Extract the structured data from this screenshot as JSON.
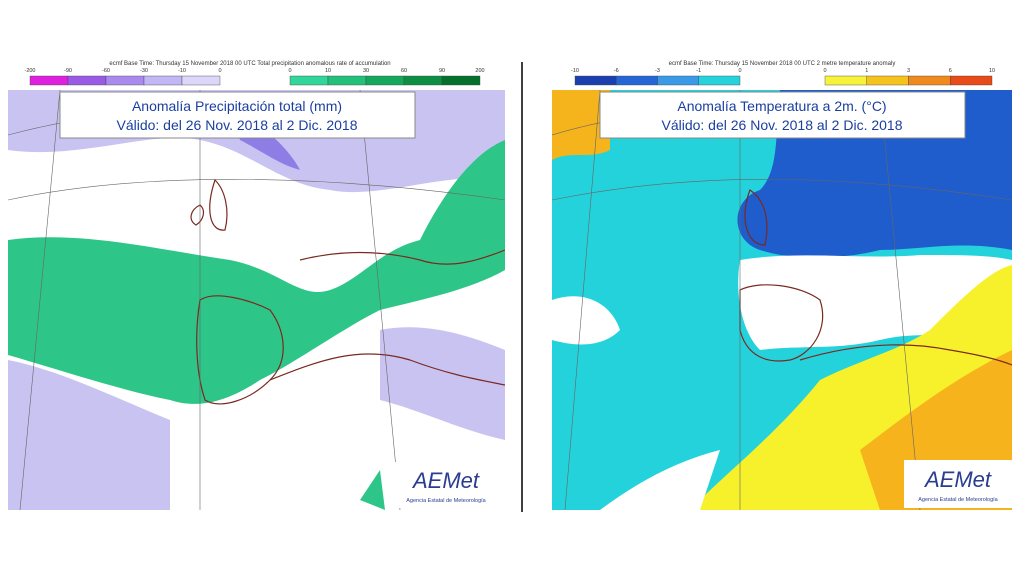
{
  "maps": [
    {
      "header": "ecmf Base Time: Thursday 15 November 2018 00 UTC Total precipitation anomalous rate of accumulation",
      "title": "Anomalía Precipitación total (mm)",
      "subtitle": "Válido: del 26 Nov. 2018 al 2 Dic. 2018",
      "legend_low": {
        "labels": [
          -200,
          -90,
          -60,
          -30,
          -10,
          0
        ],
        "colors": [
          "#e020e0",
          "#9a5ae6",
          "#a98bf0",
          "#c2b6f4",
          "#dcd6fa"
        ]
      },
      "legend_high": {
        "labels": [
          0,
          10,
          30,
          60,
          90,
          200
        ],
        "colors": [
          "#30d69a",
          "#22c07a",
          "#14a85c",
          "#0c8f42",
          "#05702c"
        ]
      },
      "logo": "AEMet",
      "logo_caption": "Agencia Estatal de Meteorología"
    },
    {
      "header": "ecmf Base Time: Thursday 15 November 2018 00 UTC 2 metre temperature anomaly",
      "title": "Anomalía Temperatura a 2m. (°C)",
      "subtitle": "Válido: del 26 Nov. 2018 al 2 Dic. 2018",
      "legend_low": {
        "labels": [
          -10,
          -6,
          -3,
          -1,
          0
        ],
        "colors": [
          "#1c3fb0",
          "#2566d6",
          "#3a9ae8",
          "#26d2dc"
        ]
      },
      "legend_high": {
        "labels": [
          0,
          1,
          3,
          6,
          10
        ],
        "colors": [
          "#f7f23a",
          "#f6c21c",
          "#f08a1c",
          "#e84a18"
        ]
      },
      "logo": "AEMet",
      "logo_caption": "Agencia Estatal de Meteorología"
    }
  ]
}
